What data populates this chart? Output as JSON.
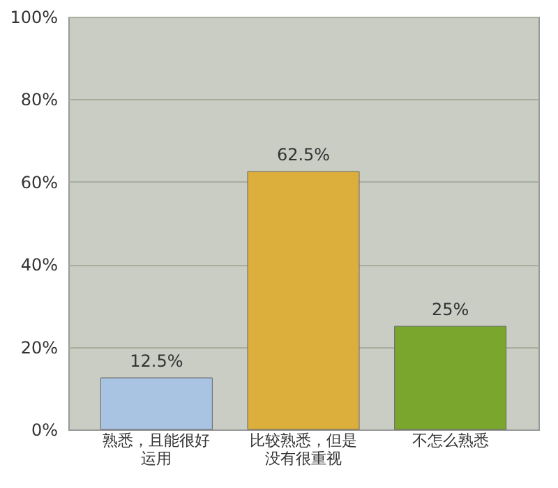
{
  "chart_data": {
    "type": "bar",
    "categories": [
      "熟悉，且能很好运用",
      "比较熟悉，但是没有很重视",
      "不怎么熟悉"
    ],
    "values": [
      12.5,
      62.5,
      25
    ],
    "colors": [
      "#a9c3e3",
      "#dcae3c",
      "#7ba62e"
    ],
    "value_labels": [
      "12.5%",
      "62.5%",
      "25%"
    ],
    "ylim": [
      0,
      100
    ],
    "yticks": [
      {
        "value": 0,
        "label": "0%"
      },
      {
        "value": 20,
        "label": "20%"
      },
      {
        "value": 40,
        "label": "40%"
      },
      {
        "value": 60,
        "label": "60%"
      },
      {
        "value": 80,
        "label": "80%"
      },
      {
        "value": 100,
        "label": "100%"
      }
    ],
    "grid": "y"
  }
}
